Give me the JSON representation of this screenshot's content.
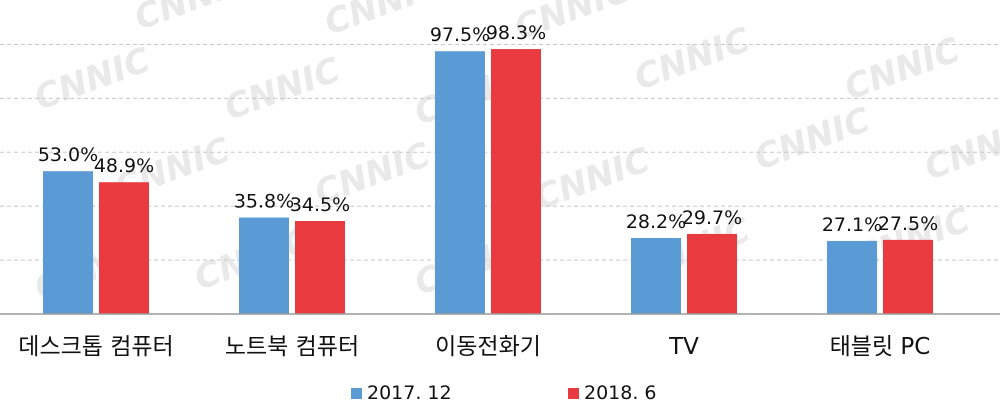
{
  "chart_data": {
    "type": "bar",
    "categories": [
      "데스크톱 컴퓨터",
      "노트북 컴퓨터",
      "이동전화기",
      "TV",
      "태블릿 PC"
    ],
    "series": [
      {
        "name": "2017. 12",
        "values": [
          53.0,
          35.8,
          97.5,
          28.2,
          27.1
        ],
        "labels": [
          "53.0%",
          "35.8%",
          "97.5%",
          "28.2%",
          "27.1%"
        ],
        "color": "#5b9bd5"
      },
      {
        "name": "2018. 6",
        "values": [
          48.9,
          34.5,
          98.3,
          29.7,
          27.5
        ],
        "labels": [
          "48.9%",
          "34.5%",
          "98.3%",
          "29.7%",
          "27.5%"
        ],
        "color": "#e83a3f"
      }
    ],
    "ylim": [
      0,
      100
    ],
    "grid": true,
    "legend_position": "bottom",
    "watermark": "CNNIC"
  }
}
